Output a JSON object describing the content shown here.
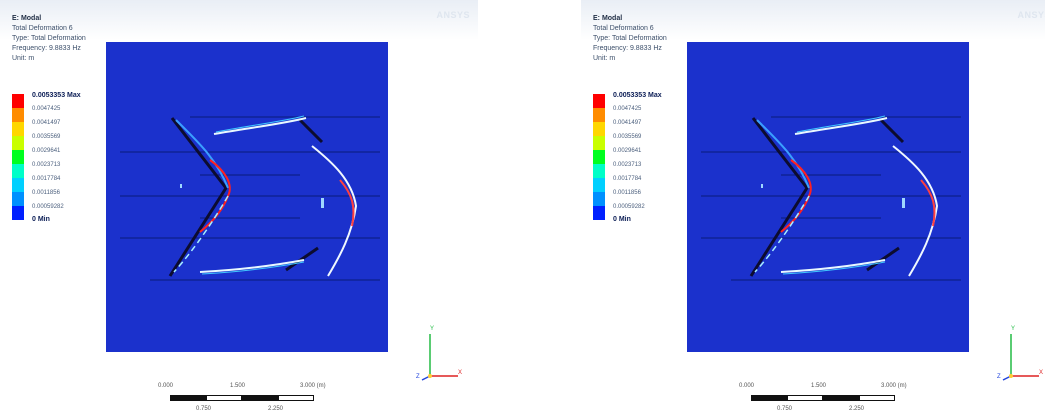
{
  "panels": [
    {
      "info": {
        "title": "E: Modal",
        "result": "Total Deformation 6",
        "type": "Type: Total Deformation",
        "frequency": "Frequency: 9.8833 Hz",
        "unit": "Unit: m"
      },
      "logo_text": "ANSYS",
      "legend": {
        "max_label": "0.0053353 Max",
        "ticks": [
          "0.0047425",
          "0.0041497",
          "0.0035569",
          "0.0029641",
          "0.0023713",
          "0.0017784",
          "0.0011856",
          "0.00059282"
        ],
        "min_label": "0 Min",
        "colors": [
          "#ff0000",
          "#ff8c00",
          "#ffd700",
          "#c9ff00",
          "#00ff20",
          "#00ffc8",
          "#00d0ff",
          "#0090ff",
          "#0020ff"
        ]
      },
      "scale_bar": {
        "labels": [
          "0.000",
          "1.500",
          "3.000 (m)"
        ],
        "sublabels": [
          "0.750",
          "2.250"
        ]
      },
      "triad": {
        "x": "X",
        "y": "Y",
        "z": "Z"
      }
    },
    {
      "info": {
        "title": "E: Modal",
        "result": "Total Deformation 6",
        "type": "Type: Total Deformation",
        "frequency": "Frequency: 9.8833 Hz",
        "unit": "Unit: m"
      },
      "logo_text": "ANSYS",
      "legend": {
        "max_label": "0.0053353 Max",
        "ticks": [
          "0.0047425",
          "0.0041497",
          "0.0035569",
          "0.0029641",
          "0.0023713",
          "0.0017784",
          "0.0011856",
          "0.00059282"
        ],
        "min_label": "0 Min",
        "colors": [
          "#ff0000",
          "#ff8c00",
          "#ffd700",
          "#c9ff00",
          "#00ff20",
          "#00ffc8",
          "#00d0ff",
          "#0090ff",
          "#0020ff"
        ]
      },
      "scale_bar": {
        "labels": [
          "0.000",
          "1.500",
          "3.000 (m)"
        ],
        "sublabels": [
          "0.750",
          "2.250"
        ]
      },
      "triad": {
        "x": "X",
        "y": "Y",
        "z": "Z"
      }
    }
  ],
  "colors": {
    "viewport_bg": "#1b31cc"
  }
}
